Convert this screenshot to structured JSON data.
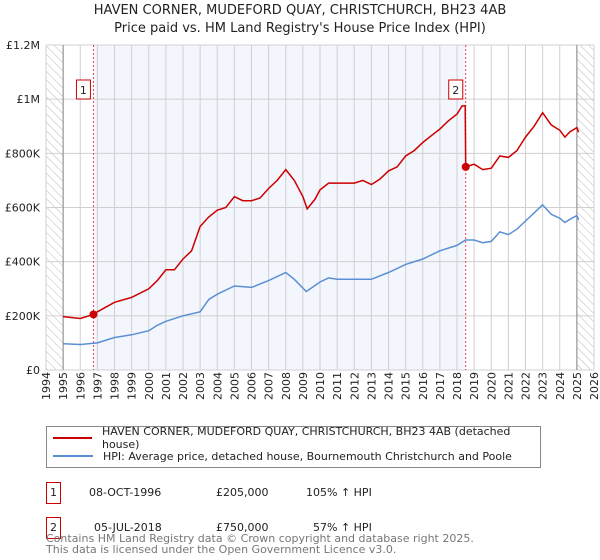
{
  "chart_data": {
    "type": "line",
    "title": "HAVEN CORNER, MUDEFORD QUAY, CHRISTCHURCH, BH23 4AB",
    "subtitle": "Price paid vs. HM Land Registry's House Price Index (HPI)",
    "xlim": [
      1994,
      2026
    ],
    "ylim": [
      0,
      1200000
    ],
    "x_ticks": [
      "1994",
      "1995",
      "1996",
      "1997",
      "1998",
      "1999",
      "2000",
      "2001",
      "2002",
      "2003",
      "2004",
      "2005",
      "2006",
      "2007",
      "2008",
      "2009",
      "2010",
      "2011",
      "2012",
      "2013",
      "2014",
      "2015",
      "2016",
      "2017",
      "2018",
      "2019",
      "2020",
      "2021",
      "2022",
      "2023",
      "2024",
      "2025",
      "2026"
    ],
    "y_ticks": [
      {
        "v": 0,
        "label": "£0"
      },
      {
        "v": 200000,
        "label": "£200K"
      },
      {
        "v": 400000,
        "label": "£400K"
      },
      {
        "v": 600000,
        "label": "£600K"
      },
      {
        "v": 800000,
        "label": "£800K"
      },
      {
        "v": 1000000,
        "label": "£1M"
      },
      {
        "v": 1200000,
        "label": "£1.2M"
      }
    ],
    "grid": true,
    "hatched_ranges": [
      [
        1994,
        1995
      ],
      [
        2025,
        2026
      ]
    ],
    "shaded_range": [
      1996.77,
      2018.51
    ],
    "series": [
      {
        "name": "HAVEN CORNER, MUDEFORD QUAY, CHRISTCHURCH, BH23 4AB (detached house)",
        "color": "#cc0000",
        "x": [
          1995,
          1996,
          1996.77,
          1997,
          1998,
          1999,
          2000,
          2000.5,
          2001,
          2001.5,
          2002,
          2002.5,
          2003,
          2003.5,
          2004,
          2004.5,
          2005,
          2005.5,
          2006,
          2006.5,
          2007,
          2007.5,
          2008,
          2008.5,
          2009,
          2009.25,
          2009.7,
          2010,
          2010.5,
          2011,
          2011.5,
          2012,
          2012.5,
          2013,
          2013.5,
          2014,
          2014.5,
          2015,
          2015.5,
          2016,
          2016.5,
          2017,
          2017.5,
          2018,
          2018.3,
          2018.48,
          2018.51,
          2019,
          2019.5,
          2020,
          2020.5,
          2021,
          2021.5,
          2022,
          2022.5,
          2023,
          2023.5,
          2024,
          2024.3,
          2024.6,
          2025,
          2025.1
        ],
        "y": [
          197000,
          190000,
          205000,
          215000,
          250000,
          268000,
          300000,
          330000,
          370000,
          370000,
          410000,
          440000,
          530000,
          565000,
          590000,
          600000,
          640000,
          625000,
          625000,
          635000,
          670000,
          700000,
          740000,
          700000,
          640000,
          595000,
          630000,
          665000,
          690000,
          690000,
          690000,
          690000,
          700000,
          685000,
          705000,
          735000,
          750000,
          790000,
          810000,
          840000,
          865000,
          890000,
          920000,
          945000,
          975000,
          975000,
          750000,
          760000,
          740000,
          745000,
          790000,
          785000,
          810000,
          860000,
          900000,
          950000,
          905000,
          885000,
          860000,
          880000,
          895000,
          878000
        ]
      },
      {
        "name": "HPI: Average price, detached house, Bournemouth Christchurch and Poole",
        "color": "#5b8fd4",
        "x": [
          1995,
          1996,
          1997,
          1998,
          1999,
          2000,
          2000.5,
          2001,
          2002,
          2003,
          2003.5,
          2004,
          2005,
          2006,
          2007,
          2008,
          2008.5,
          2009.2,
          2010,
          2010.5,
          2011,
          2012,
          2013,
          2014,
          2015,
          2016,
          2016.5,
          2017,
          2018,
          2018.5,
          2019,
          2019.5,
          2020,
          2020.5,
          2021,
          2021.5,
          2022,
          2022.5,
          2023,
          2023.5,
          2024,
          2024.3,
          2024.7,
          2025,
          2025.1
        ],
        "y": [
          97000,
          94000,
          100000,
          120000,
          130000,
          145000,
          165000,
          180000,
          200000,
          215000,
          260000,
          280000,
          310000,
          305000,
          330000,
          360000,
          335000,
          290000,
          325000,
          340000,
          335000,
          335000,
          335000,
          360000,
          390000,
          410000,
          425000,
          440000,
          460000,
          480000,
          480000,
          470000,
          475000,
          510000,
          500000,
          520000,
          550000,
          580000,
          610000,
          575000,
          560000,
          545000,
          560000,
          570000,
          555000
        ]
      }
    ],
    "annotations": [
      {
        "label": "1",
        "x": 1996.77,
        "y": 205000
      },
      {
        "label": "2",
        "x": 2018.51,
        "y": 750000
      }
    ]
  },
  "legend": {
    "red": "HAVEN CORNER, MUDEFORD QUAY, CHRISTCHURCH, BH23 4AB (detached house)",
    "blue": "HPI: Average price, detached house, Bournemouth Christchurch and Poole"
  },
  "sales": [
    {
      "num": "1",
      "date": "08-OCT-1996",
      "price": "£205,000",
      "hpi": "105% ↑ HPI"
    },
    {
      "num": "2",
      "date": "05-JUL-2018",
      "price": "£750,000",
      "hpi": "57% ↑ HPI"
    }
  ],
  "footer": {
    "line1": "Contains HM Land Registry data © Crown copyright and database right 2025.",
    "line2": "This data is licensed under the Open Government Licence v3.0."
  }
}
